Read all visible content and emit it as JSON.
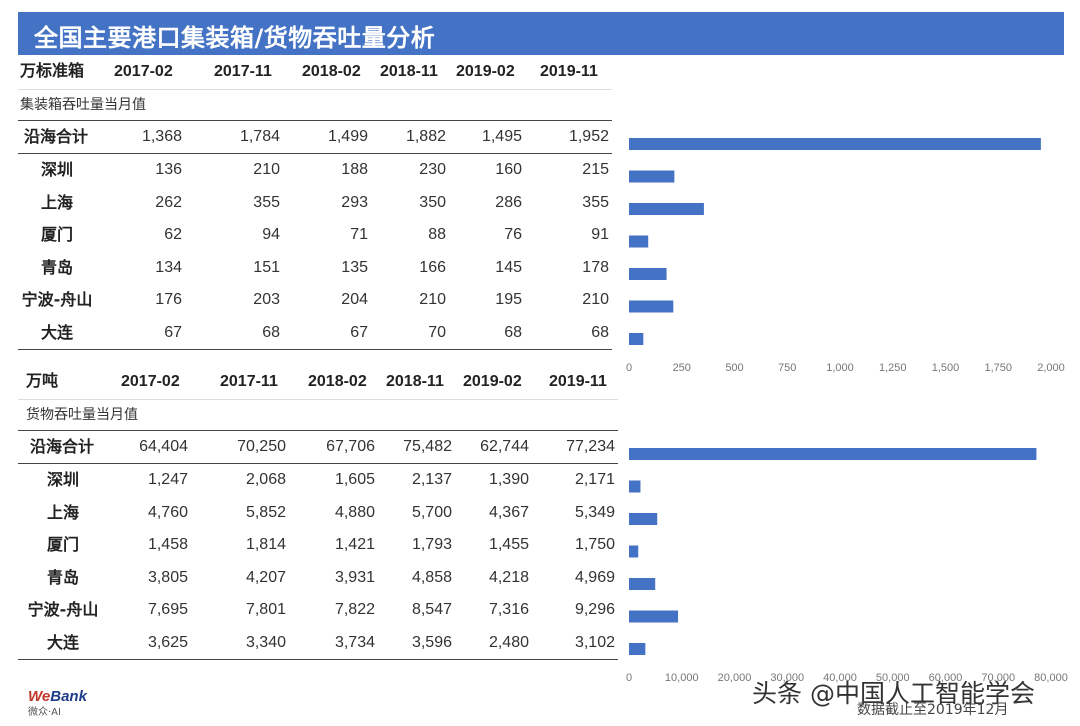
{
  "title": "全国主要港口集装箱/货物吞吐量分析",
  "columns": [
    "2017-02",
    "2017-11",
    "2018-02",
    "2018-11",
    "2019-02",
    "2019-11"
  ],
  "tables": [
    {
      "unit": "万标准箱",
      "caption": "集装箱吞吐量当月值",
      "rows": [
        {
          "name": "沿海合计",
          "values": [
            "1,368",
            "1,784",
            "1,499",
            "1,882",
            "1,495",
            "1,952"
          ]
        },
        {
          "name": "深圳",
          "values": [
            "136",
            "210",
            "188",
            "230",
            "160",
            "215"
          ]
        },
        {
          "name": "上海",
          "values": [
            "262",
            "355",
            "293",
            "350",
            "286",
            "355"
          ]
        },
        {
          "name": "厦门",
          "values": [
            "62",
            "94",
            "71",
            "88",
            "76",
            "91"
          ]
        },
        {
          "name": "青岛",
          "values": [
            "134",
            "151",
            "135",
            "166",
            "145",
            "178"
          ]
        },
        {
          "name": "宁波-舟山",
          "values": [
            "176",
            "203",
            "204",
            "210",
            "195",
            "210"
          ]
        },
        {
          "name": "大连",
          "values": [
            "67",
            "68",
            "67",
            "70",
            "68",
            "68"
          ]
        }
      ]
    },
    {
      "unit": "万吨",
      "caption": "货物吞吐量当月值",
      "rows": [
        {
          "name": "沿海合计",
          "values": [
            "64,404",
            "70,250",
            "67,706",
            "75,482",
            "62,744",
            "77,234"
          ]
        },
        {
          "name": "深圳",
          "values": [
            "1,247",
            "2,068",
            "1,605",
            "2,137",
            "1,390",
            "2,171"
          ]
        },
        {
          "name": "上海",
          "values": [
            "4,760",
            "5,852",
            "4,880",
            "5,700",
            "4,367",
            "5,349"
          ]
        },
        {
          "name": "厦门",
          "values": [
            "1,458",
            "1,814",
            "1,421",
            "1,793",
            "1,455",
            "1,750"
          ]
        },
        {
          "name": "青岛",
          "values": [
            "3,805",
            "4,207",
            "3,931",
            "4,858",
            "4,218",
            "4,969"
          ]
        },
        {
          "name": "宁波-舟山",
          "values": [
            "7,695",
            "7,801",
            "7,822",
            "8,547",
            "7,316",
            "9,296"
          ]
        },
        {
          "name": "大连",
          "values": [
            "3,625",
            "3,340",
            "3,734",
            "3,596",
            "2,480",
            "3,102"
          ]
        }
      ]
    }
  ],
  "chart_data": [
    {
      "type": "bar",
      "orientation": "horizontal",
      "categories": [
        "沿海合计",
        "深圳",
        "上海",
        "厦门",
        "青岛",
        "宁波-舟山",
        "大连"
      ],
      "values": [
        1952,
        215,
        355,
        91,
        178,
        210,
        68
      ],
      "xlim": [
        0,
        2000
      ],
      "ticks": [
        "0",
        "250",
        "500",
        "750",
        "1,000",
        "1,250",
        "1,500",
        "1,750",
        "2,000"
      ],
      "tick_values": [
        0,
        250,
        500,
        750,
        1000,
        1250,
        1500,
        1750,
        2000
      ],
      "color": "#4472c4",
      "grid": false
    },
    {
      "type": "bar",
      "orientation": "horizontal",
      "categories": [
        "沿海合计",
        "深圳",
        "上海",
        "厦门",
        "青岛",
        "宁波-舟山",
        "大连"
      ],
      "values": [
        77234,
        2171,
        5349,
        1750,
        4969,
        9296,
        3102
      ],
      "xlim": [
        0,
        80000
      ],
      "ticks": [
        "0",
        "10,000",
        "20,000",
        "30,000",
        "40,000",
        "50,000",
        "60,000",
        "70,000",
        "80,000"
      ],
      "tick_values": [
        0,
        10000,
        20000,
        30000,
        40000,
        50000,
        60000,
        70000,
        80000
      ],
      "color": "#4472c4",
      "grid": false
    }
  ],
  "logo": {
    "main_we": "We",
    "main_bank": "Bank",
    "sub": "微众·AI"
  },
  "watermark": "头条 @中国人工智能学会",
  "footnote": "数据截止至2019年12月"
}
